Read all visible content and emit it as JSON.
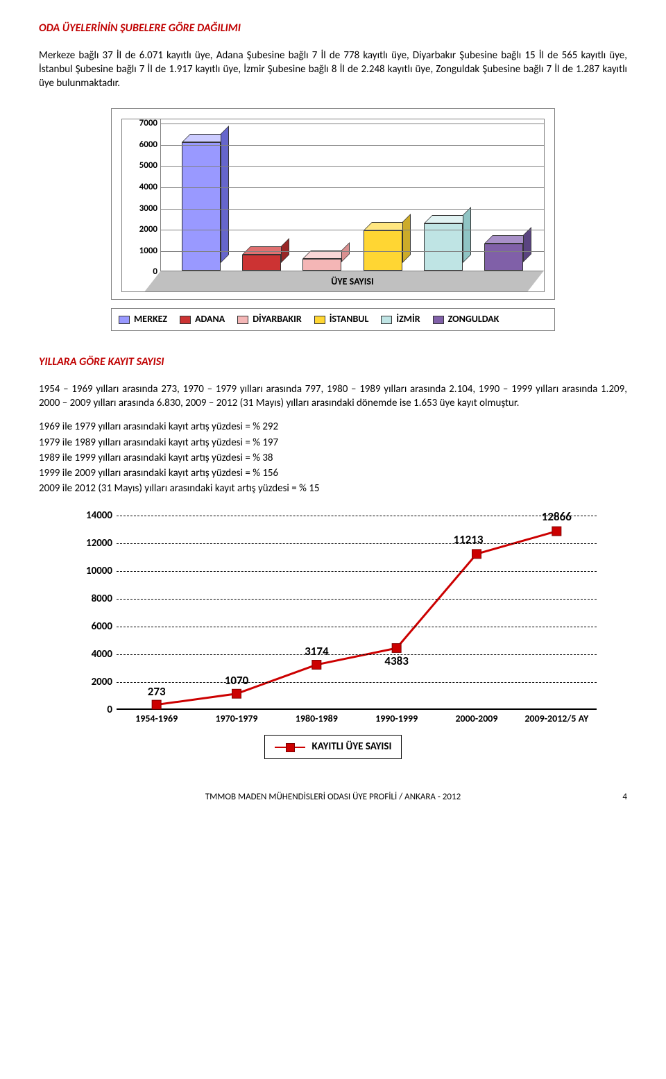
{
  "section1_title": "ODA ÜYELERİNİN ŞUBELERE GÖRE DAĞILIMI",
  "para1": "Merkeze bağlı 37 İl de 6.071 kayıtlı üye, Adana Şubesine bağlı 7 İl de 778 kayıtlı üye, Diyarbakır Şubesine bağlı 15 İl de 565 kayıtlı üye, İstanbul Şubesine bağlı 7 İl de 1.917 kayıtlı üye, İzmir Şubesine bağlı 8 İl de 2.248 kayıtlı üye, Zonguldak Şubesine bağlı 7 İl de 1.287 kayıtlı üye bulunmaktadır.",
  "bar_chart": {
    "type": "bar",
    "ylim": [
      0,
      7000
    ],
    "ytick_step": 1000,
    "yticks": [
      "0",
      "1000",
      "2000",
      "3000",
      "4000",
      "5000",
      "6000",
      "7000"
    ],
    "xlabel": "ÜYE SAYISI",
    "background_color": "#ffffff",
    "floor_color": "#c0c0c0",
    "grid_color": "#808080",
    "series": [
      {
        "label": "MERKEZ",
        "value": 6071,
        "front": "#9999ff",
        "top": "#ccccff",
        "side": "#6666cc"
      },
      {
        "label": "ADANA",
        "value": 778,
        "front": "#cc3333",
        "top": "#e07070",
        "side": "#992626"
      },
      {
        "label": "DİYARBAKIR",
        "value": 565,
        "front": "#f4b6b6",
        "top": "#f9d6d6",
        "side": "#d99090"
      },
      {
        "label": "İSTANBUL",
        "value": 1917,
        "front": "#ffd633",
        "top": "#ffe680",
        "side": "#ccab29"
      },
      {
        "label": "İZMİR",
        "value": 2248,
        "front": "#bfe4e4",
        "top": "#e0f2f2",
        "side": "#8fc4c4"
      },
      {
        "label": "ZONGULDAK",
        "value": 1287,
        "front": "#8060a8",
        "top": "#a890c8",
        "side": "#5a4480"
      }
    ]
  },
  "section2_title": "YILLARA GÖRE KAYIT SAYISI",
  "para2": "1954 – 1969 yılları arasında 273, 1970 – 1979 yılları arasında 797, 1980 – 1989 yılları arasında 2.104, 1990 – 1999 yılları arasında 1.209, 2000 – 2009 yılları arasında 6.830, 2009 – 2012 (31 Mayıs) yılları arasındaki dönemde ise 1.653 üye kayıt olmuştur.",
  "growth_lines": [
    "1969 ile 1979 yılları arasındaki kayıt artış yüzdesi = % 292",
    "1979 ile 1989 yılları arasındaki kayıt artış yüzdesi = % 197",
    "1989 ile 1999 yılları arasındaki kayıt artış yüzdesi = % 38",
    "1999 ile 2009 yılları arasındaki kayıt artış yüzdesi = % 156",
    "2009 ile 2012 (31 Mayıs) yılları arasındaki kayıt artış yüzdesi = % 15"
  ],
  "line_chart": {
    "type": "line",
    "ylim": [
      0,
      14000
    ],
    "ytick_step": 2000,
    "yticks": [
      "0",
      "2000",
      "4000",
      "6000",
      "8000",
      "10000",
      "12000",
      "14000"
    ],
    "line_color": "#cc0000",
    "marker_color": "#cc0000",
    "marker_border": "#800000",
    "line_width": 3,
    "marker_size": 13,
    "grid_color": "#000000",
    "categories": [
      "1954-1969",
      "1970-1979",
      "1980-1989",
      "1990-1999",
      "2000-2009",
      "2009-2012/5 AY"
    ],
    "values": [
      273,
      1070,
      3174,
      4383,
      11213,
      12866
    ],
    "legend_label": "KAYITLI ÜYE SAYISI"
  },
  "footer_text": "TMMOB MADEN MÜHENDİSLERİ ODASI ÜYE PROFİLİ / ANKARA - 2012",
  "page_number": "4"
}
